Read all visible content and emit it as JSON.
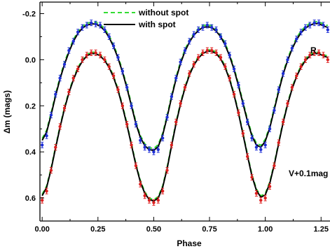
{
  "chart_data": {
    "type": "scatter",
    "xlabel": "Phase",
    "ylabel": "Δm (mags)",
    "xlim": [
      -0.01,
      1.29
    ],
    "ylim": [
      -0.25,
      0.7
    ],
    "y_inverted": true,
    "x_ticks": [
      "0.00",
      "0.25",
      "0.50",
      "0.75",
      "1.00",
      "1.25"
    ],
    "x_tick_values": [
      0,
      0.25,
      0.5,
      0.75,
      1.0,
      1.25
    ],
    "y_ticks": [
      "-0.2",
      "0.0",
      "0.2",
      "0.4",
      "0.6"
    ],
    "y_tick_values": [
      -0.2,
      0.0,
      0.2,
      0.4,
      0.6
    ],
    "legend": {
      "placement": "top-center",
      "items": [
        {
          "label": "without spot",
          "style": "dashed",
          "color": "#33dd33"
        },
        {
          "label": "with spot",
          "style": "solid",
          "color": "#000000"
        }
      ]
    },
    "annotations": [
      {
        "text": "R",
        "x": 1.215,
        "y": -0.07
      },
      {
        "text": "V+0.1mag",
        "x": 1.12,
        "y": 0.52
      }
    ],
    "series": [
      {
        "name": "R",
        "marker_color": "#1f2fd6",
        "points": [
          [
            0.0,
            0.37
          ],
          [
            0.02,
            0.33
          ],
          [
            0.04,
            0.24
          ],
          [
            0.06,
            0.15
          ],
          [
            0.08,
            0.08
          ],
          [
            0.1,
            0.02
          ],
          [
            0.12,
            -0.04
          ],
          [
            0.14,
            -0.08
          ],
          [
            0.16,
            -0.12
          ],
          [
            0.18,
            -0.14
          ],
          [
            0.2,
            -0.15
          ],
          [
            0.22,
            -0.16
          ],
          [
            0.24,
            -0.155
          ],
          [
            0.26,
            -0.15
          ],
          [
            0.28,
            -0.13
          ],
          [
            0.3,
            -0.1
          ],
          [
            0.32,
            -0.06
          ],
          [
            0.34,
            -0.01
          ],
          [
            0.36,
            0.05
          ],
          [
            0.38,
            0.12
          ],
          [
            0.4,
            0.2
          ],
          [
            0.42,
            0.28
          ],
          [
            0.44,
            0.35
          ],
          [
            0.46,
            0.38
          ],
          [
            0.48,
            0.39
          ],
          [
            0.5,
            0.4
          ],
          [
            0.52,
            0.39
          ],
          [
            0.54,
            0.34
          ],
          [
            0.56,
            0.25
          ],
          [
            0.58,
            0.16
          ],
          [
            0.6,
            0.08
          ],
          [
            0.62,
            0.01
          ],
          [
            0.64,
            -0.04
          ],
          [
            0.66,
            -0.08
          ],
          [
            0.68,
            -0.11
          ],
          [
            0.7,
            -0.13
          ],
          [
            0.72,
            -0.14
          ],
          [
            0.74,
            -0.15
          ],
          [
            0.76,
            -0.14
          ],
          [
            0.78,
            -0.13
          ],
          [
            0.8,
            -0.1
          ],
          [
            0.82,
            -0.07
          ],
          [
            0.84,
            -0.02
          ],
          [
            0.86,
            0.04
          ],
          [
            0.88,
            0.11
          ],
          [
            0.9,
            0.19
          ],
          [
            0.92,
            0.27
          ],
          [
            0.94,
            0.34
          ],
          [
            0.96,
            0.38
          ],
          [
            0.98,
            0.39
          ],
          [
            1.0,
            0.37
          ],
          [
            1.02,
            0.3
          ],
          [
            1.04,
            0.22
          ],
          [
            1.06,
            0.13
          ],
          [
            1.08,
            0.06
          ],
          [
            1.1,
            0.0
          ],
          [
            1.12,
            -0.05
          ],
          [
            1.14,
            -0.09
          ],
          [
            1.16,
            -0.12
          ],
          [
            1.18,
            -0.14
          ],
          [
            1.2,
            -0.15
          ],
          [
            1.22,
            -0.16
          ],
          [
            1.24,
            -0.16
          ],
          [
            1.26,
            -0.15
          ],
          [
            1.28,
            -0.13
          ]
        ]
      },
      {
        "name": "V+0.1mag",
        "marker_color": "#dd1f1f",
        "points": [
          [
            0.0,
            0.61
          ],
          [
            0.02,
            0.57
          ],
          [
            0.04,
            0.48
          ],
          [
            0.06,
            0.38
          ],
          [
            0.08,
            0.29
          ],
          [
            0.1,
            0.21
          ],
          [
            0.12,
            0.14
          ],
          [
            0.14,
            0.08
          ],
          [
            0.16,
            0.04
          ],
          [
            0.18,
            0.0
          ],
          [
            0.2,
            -0.02
          ],
          [
            0.22,
            -0.03
          ],
          [
            0.24,
            -0.03
          ],
          [
            0.26,
            -0.02
          ],
          [
            0.28,
            0.0
          ],
          [
            0.3,
            0.03
          ],
          [
            0.32,
            0.07
          ],
          [
            0.34,
            0.13
          ],
          [
            0.36,
            0.2
          ],
          [
            0.38,
            0.28
          ],
          [
            0.4,
            0.37
          ],
          [
            0.42,
            0.46
          ],
          [
            0.44,
            0.54
          ],
          [
            0.46,
            0.59
          ],
          [
            0.48,
            0.61
          ],
          [
            0.5,
            0.62
          ],
          [
            0.52,
            0.61
          ],
          [
            0.54,
            0.57
          ],
          [
            0.56,
            0.48
          ],
          [
            0.58,
            0.37
          ],
          [
            0.6,
            0.27
          ],
          [
            0.62,
            0.19
          ],
          [
            0.64,
            0.12
          ],
          [
            0.66,
            0.06
          ],
          [
            0.68,
            0.02
          ],
          [
            0.7,
            -0.01
          ],
          [
            0.72,
            -0.03
          ],
          [
            0.74,
            -0.04
          ],
          [
            0.76,
            -0.04
          ],
          [
            0.78,
            -0.03
          ],
          [
            0.8,
            -0.01
          ],
          [
            0.82,
            0.03
          ],
          [
            0.84,
            0.08
          ],
          [
            0.86,
            0.15
          ],
          [
            0.88,
            0.23
          ],
          [
            0.9,
            0.32
          ],
          [
            0.92,
            0.42
          ],
          [
            0.94,
            0.51
          ],
          [
            0.96,
            0.58
          ],
          [
            0.98,
            0.61
          ],
          [
            1.0,
            0.6
          ],
          [
            1.02,
            0.55
          ],
          [
            1.04,
            0.46
          ],
          [
            1.06,
            0.36
          ],
          [
            1.08,
            0.27
          ],
          [
            1.1,
            0.19
          ],
          [
            1.12,
            0.12
          ],
          [
            1.14,
            0.07
          ],
          [
            1.16,
            0.03
          ],
          [
            1.18,
            0.0
          ],
          [
            1.2,
            -0.02
          ],
          [
            1.22,
            -0.03
          ],
          [
            1.24,
            -0.03
          ],
          [
            1.26,
            -0.02
          ],
          [
            1.28,
            0.0
          ]
        ]
      }
    ]
  }
}
